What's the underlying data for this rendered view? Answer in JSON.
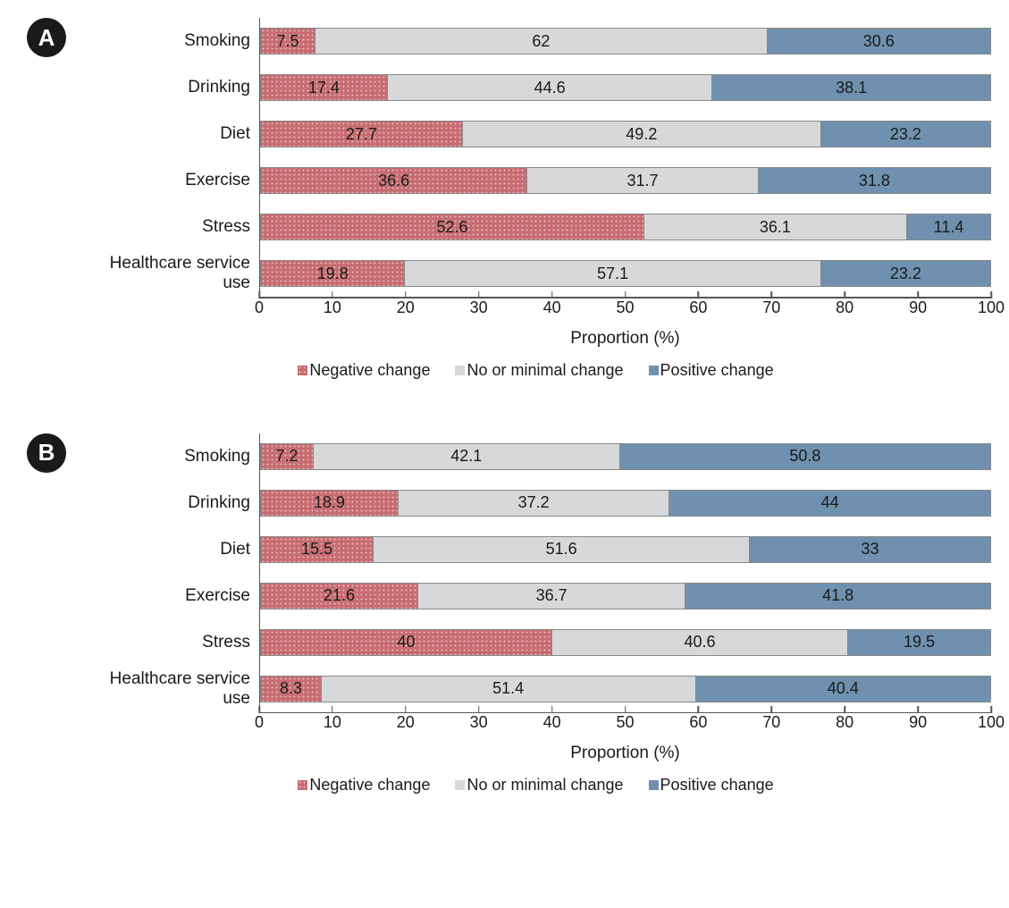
{
  "chart": {
    "type": "stacked-horizontal-bar",
    "axis_label": "Proportion (%)",
    "xlim": [
      0,
      100
    ],
    "xtick_step": 10,
    "xticks": [
      0,
      10,
      20,
      30,
      40,
      50,
      60,
      70,
      80,
      90,
      100
    ],
    "background_color": "#ffffff",
    "bar_border_color": "#888888",
    "axis_color": "#555555",
    "label_fontsize": 19,
    "value_fontsize": 18,
    "tick_fontsize": 18,
    "legend_fontsize": 18,
    "badge_bg": "#1a1a1a",
    "badge_fg": "#ffffff",
    "series": [
      {
        "key": "negative",
        "label": "Negative change",
        "color": "#c76d72",
        "pattern": "dots"
      },
      {
        "key": "neutral",
        "label": "No or minimal change",
        "color": "#d7d8d9",
        "pattern": "none"
      },
      {
        "key": "positive",
        "label": "Positive change",
        "color": "#6f91af",
        "pattern": "none"
      }
    ],
    "panels": [
      {
        "badge": "A",
        "categories": [
          "Smoking",
          "Drinking",
          "Diet",
          "Exercise",
          "Stress",
          "Healthcare service use"
        ],
        "data": [
          {
            "negative": 7.5,
            "neutral": 62.0,
            "positive": 30.6
          },
          {
            "negative": 17.4,
            "neutral": 44.6,
            "positive": 38.1
          },
          {
            "negative": 27.7,
            "neutral": 49.2,
            "positive": 23.2
          },
          {
            "negative": 36.6,
            "neutral": 31.7,
            "positive": 31.8
          },
          {
            "negative": 52.6,
            "neutral": 36.1,
            "positive": 11.4
          },
          {
            "negative": 19.8,
            "neutral": 57.1,
            "positive": 23.2
          }
        ]
      },
      {
        "badge": "B",
        "categories": [
          "Smoking",
          "Drinking",
          "Diet",
          "Exercise",
          "Stress",
          "Healthcare service use"
        ],
        "data": [
          {
            "negative": 7.2,
            "neutral": 42.1,
            "positive": 50.8
          },
          {
            "negative": 18.9,
            "neutral": 37.2,
            "positive": 44.0
          },
          {
            "negative": 15.5,
            "neutral": 51.6,
            "positive": 33.0
          },
          {
            "negative": 21.6,
            "neutral": 36.7,
            "positive": 41.8
          },
          {
            "negative": 40.0,
            "neutral": 40.6,
            "positive": 19.5
          },
          {
            "negative": 8.3,
            "neutral": 51.4,
            "positive": 40.4
          }
        ]
      }
    ]
  }
}
